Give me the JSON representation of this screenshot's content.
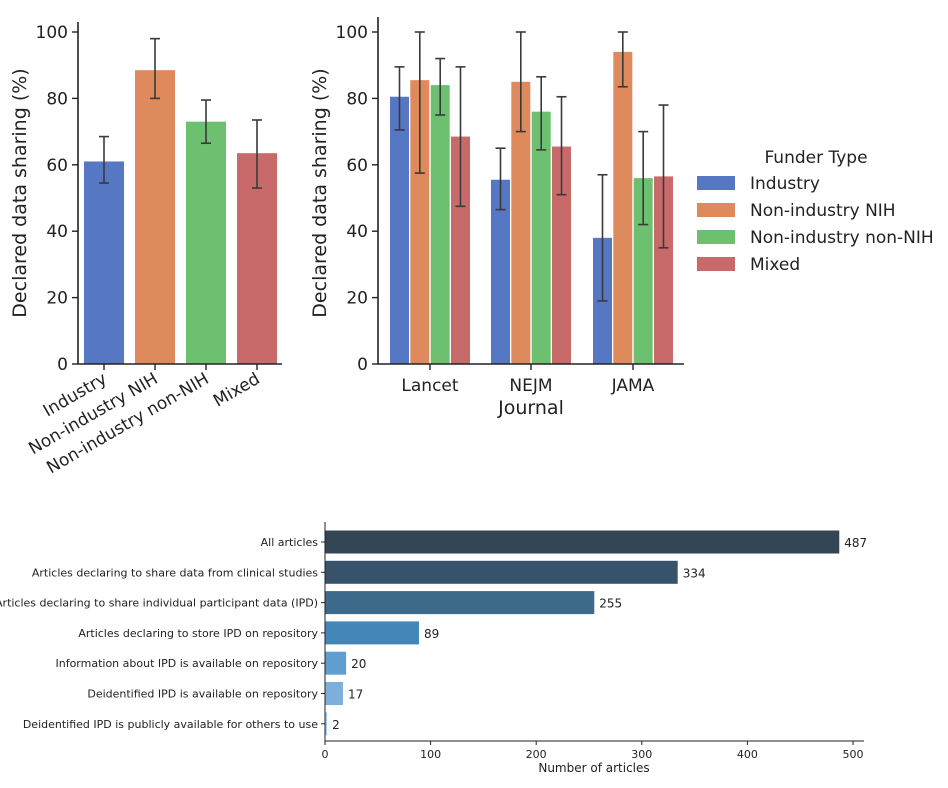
{
  "chart_data": [
    {
      "type": "bar",
      "categories": [
        "Industry",
        "Non-industry NIH",
        "Non-industry non-NIH",
        "Mixed"
      ],
      "values": [
        61,
        88.5,
        73,
        63.5
      ],
      "error_low": [
        54.5,
        80,
        66.5,
        53
      ],
      "error_high": [
        68.5,
        98,
        79.5,
        73.5
      ],
      "colors": [
        "#5577c4",
        "#df8a5d",
        "#6cc070",
        "#c86a6a"
      ],
      "xlabel": "",
      "ylabel": "Declared data sharing (%)",
      "ylim": [
        0,
        100
      ],
      "yticks": [
        0,
        20,
        40,
        60,
        80,
        100
      ]
    },
    {
      "type": "bar",
      "categories": [
        "Lancet",
        "NEJM",
        "JAMA"
      ],
      "series": [
        {
          "name": "Industry",
          "values": [
            80.5,
            55.5,
            38
          ],
          "error_low": [
            70.5,
            46.5,
            19
          ],
          "error_high": [
            89.5,
            65,
            57
          ],
          "color": "#5577c4"
        },
        {
          "name": "Non-industry NIH",
          "values": [
            85.5,
            85,
            94
          ],
          "error_low": [
            57.5,
            70,
            83.5
          ],
          "error_high": [
            100,
            100,
            100
          ],
          "color": "#df8a5d"
        },
        {
          "name": "Non-industry non-NIH",
          "values": [
            84,
            76,
            56
          ],
          "error_low": [
            75,
            64.5,
            42
          ],
          "error_high": [
            92,
            86.5,
            70
          ],
          "color": "#6cc070"
        },
        {
          "name": "Mixed",
          "values": [
            68.5,
            65.5,
            56.5
          ],
          "error_low": [
            47.5,
            51,
            35
          ],
          "error_high": [
            89.5,
            80.5,
            78
          ],
          "color": "#c86a6a"
        }
      ],
      "xlabel": "Journal",
      "ylabel": "Declared data sharing (%)",
      "ylim": [
        0,
        100
      ],
      "yticks": [
        0,
        20,
        40,
        60,
        80,
        100
      ],
      "legend_title": "Funder Type",
      "legend_placement": "right"
    },
    {
      "type": "bar",
      "orientation": "horizontal",
      "categories": [
        "All articles",
        "Articles declaring to share data from clinical studies",
        "Articles declaring to share individual participant data (IPD)",
        "Articles declaring to store IPD on repository",
        "Information about IPD is available on repository",
        "Deidentified IPD is available on repository",
        "Deidentified IPD is publicly available for others to use"
      ],
      "values": [
        487,
        334,
        255,
        89,
        20,
        17,
        2
      ],
      "value_labels": [
        "487",
        "334",
        "255",
        "89",
        "20",
        "17",
        "2"
      ],
      "colors": [
        "#344654",
        "#37536c",
        "#3e6a8c",
        "#4486b8",
        "#5e9fd0",
        "#7cb0da",
        "#a8cbe8"
      ],
      "xlabel": "Number of articles",
      "xlim": [
        0,
        510
      ],
      "xticks": [
        0,
        100,
        200,
        300,
        400,
        500
      ]
    }
  ]
}
